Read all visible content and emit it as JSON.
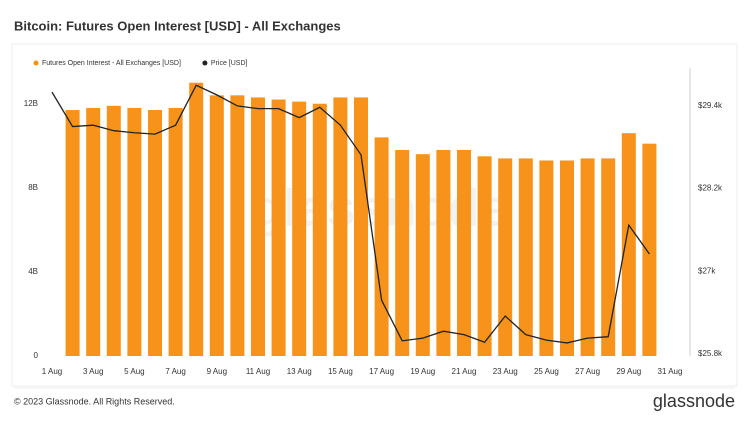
{
  "chart_data": {
    "type": "bar-line",
    "title": "Bitcoin: Futures Open Interest [USD] - All Exchanges",
    "categories": [
      "1 Aug",
      null,
      "3 Aug",
      null,
      "5 Aug",
      null,
      "7 Aug",
      null,
      "9 Aug",
      null,
      "11 Aug",
      null,
      "13 Aug",
      null,
      "15 Aug",
      null,
      "17 Aug",
      null,
      "19 Aug",
      null,
      "21 Aug",
      null,
      "23 Aug",
      null,
      "25 Aug",
      null,
      "27 Aug",
      null,
      "29 Aug",
      null,
      "31 Aug"
    ],
    "series": [
      {
        "name": "Futures Open Interest - All Exchanges [USD]",
        "color": "#f7931a",
        "kind": "bar",
        "values": [
          null,
          11.7,
          11.8,
          11.9,
          11.8,
          11.7,
          11.8,
          13.0,
          12.4,
          12.4,
          12.3,
          12.2,
          12.1,
          12.0,
          12.3,
          12.3,
          10.4,
          9.8,
          9.6,
          9.8,
          9.8,
          9.5,
          9.4,
          9.4,
          9.3,
          9.3,
          9.4,
          9.4,
          10.6,
          10.1,
          null
        ]
      },
      {
        "name": "Price [USD]",
        "color": "#222222",
        "kind": "line",
        "axis": "y2",
        "values": [
          29600,
          29100,
          29120,
          29040,
          29010,
          28990,
          29120,
          29700,
          29560,
          29400,
          29360,
          29360,
          29230,
          29380,
          29120,
          28690,
          26580,
          25990,
          26030,
          26130,
          26080,
          25970,
          26350,
          26080,
          26000,
          25960,
          26030,
          26050,
          27670,
          27250,
          null
        ]
      }
    ],
    "ylim": [
      0,
      13.7
    ],
    "yticks": [
      0,
      {
        "value": 4,
        "label": "4B"
      },
      {
        "value": 8,
        "label": "8B"
      },
      {
        "value": 12,
        "label": "12B"
      }
    ],
    "y2lim": [
      25770,
      29950
    ],
    "y2ticks": [
      {
        "value": 25800,
        "label": "$25.8k"
      },
      {
        "value": 27000,
        "label": "$27k"
      },
      {
        "value": 28200,
        "label": "$28.2k"
      },
      {
        "value": 29400,
        "label": "$29.4k"
      }
    ],
    "watermark": "glassnode",
    "footer": "© 2023 Glassnode. All Rights Reserved.",
    "brand": "glassnode"
  }
}
